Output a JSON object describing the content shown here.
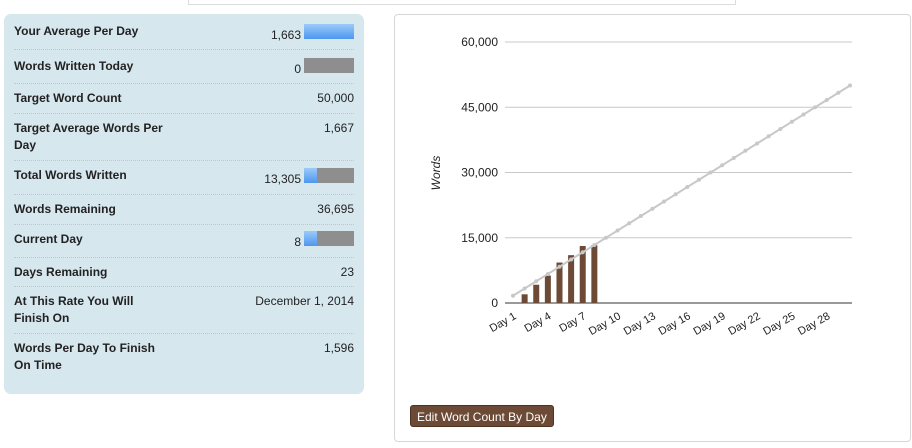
{
  "stats": {
    "rows": [
      {
        "label": "Your Average Per Day",
        "value": "1,663",
        "bar_fill": 1.0
      },
      {
        "label": "Words Written Today",
        "value": "0",
        "bar_fill": 0.0
      },
      {
        "label": "Target Word Count",
        "value": "50,000"
      },
      {
        "label": "Target Average Words Per Day",
        "value": "1,667"
      },
      {
        "label": "Total Words Written",
        "value": "13,305",
        "bar_fill": 0.266
      },
      {
        "label": "Words Remaining",
        "value": "36,695"
      },
      {
        "label": "Current Day",
        "value": "8",
        "bar_fill": 0.267
      },
      {
        "label": "Days Remaining",
        "value": "23"
      },
      {
        "label": "At This Rate You Will Finish On",
        "value": "December 1, 2014"
      },
      {
        "label": "Words Per Day To Finish On Time",
        "value": "1,596"
      }
    ]
  },
  "edit_button_label": "Edit Word Count By Day",
  "colors": {
    "bar": "#6d4a35",
    "target_line": "#c8c8c8",
    "progress_fill": "#4d97ef",
    "progress_track": "#8e8e8e",
    "panel_bg": "#d7e7ee"
  },
  "chart_data": {
    "type": "bar",
    "ylabel": "Words",
    "ylim": [
      0,
      60000
    ],
    "yticks": [
      0,
      15000,
      30000,
      45000,
      60000
    ],
    "ytick_labels": [
      "0",
      "15,000",
      "30,000",
      "45,000",
      "60,000"
    ],
    "xtick_labels": [
      "Day 1",
      "Day 4",
      "Day 7",
      "Day 10",
      "Day 13",
      "Day 16",
      "Day 19",
      "Day 22",
      "Day 25",
      "Day 28"
    ],
    "xtick_days": [
      1,
      4,
      7,
      10,
      13,
      16,
      19,
      22,
      25,
      28
    ],
    "days": 30,
    "series": [
      {
        "type": "bar",
        "days": [
          2,
          3,
          4,
          5,
          6,
          7,
          8
        ],
        "values": [
          2000,
          4200,
          6300,
          9300,
          11000,
          13100,
          13305
        ]
      },
      {
        "type": "line",
        "days": [
          1,
          30
        ],
        "values": [
          1667,
          50000
        ]
      }
    ],
    "grid": true
  }
}
